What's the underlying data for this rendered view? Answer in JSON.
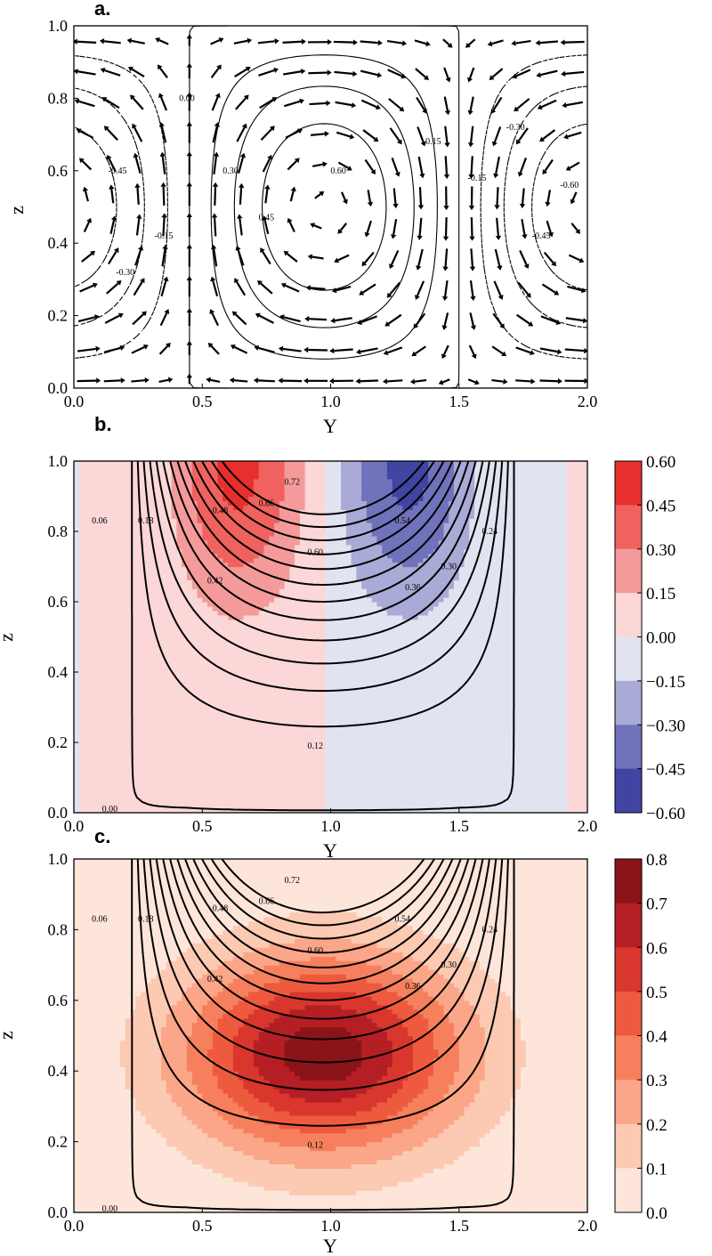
{
  "chart_data": [
    {
      "panel_label": "a.",
      "type": "contour-quiver",
      "xlabel": "Y",
      "ylabel": "z",
      "xlim": [
        0.0,
        2.0
      ],
      "ylim": [
        0.0,
        1.0
      ],
      "xticks": [
        "0.0",
        "0.5",
        "1.0",
        "1.5",
        "2.0"
      ],
      "yticks": [
        "0.0",
        "0.2",
        "0.4",
        "0.6",
        "0.8",
        "1.0"
      ],
      "contour_levels": [
        -0.6,
        -0.45,
        -0.3,
        -0.15,
        0.0,
        0.15,
        0.3,
        0.45,
        0.6
      ],
      "contour_labels": [
        {
          "text": "0.00",
          "y": 0.44,
          "z": 0.8
        },
        {
          "text": "0.30",
          "y": 0.61,
          "z": 0.6
        },
        {
          "text": "0.45",
          "y": 0.75,
          "z": 0.47
        },
        {
          "text": "0.60",
          "y": 1.03,
          "z": 0.6
        },
        {
          "text": "-0.45",
          "y": 0.17,
          "z": 0.6
        },
        {
          "text": "-0.15",
          "y": 0.35,
          "z": 0.42
        },
        {
          "text": "-0.30",
          "y": 0.2,
          "z": 0.32
        },
        {
          "text": "0.15",
          "y": 1.4,
          "z": 0.68
        },
        {
          "text": "-0.30",
          "y": 1.72,
          "z": 0.72
        },
        {
          "text": "-0.15",
          "y": 1.57,
          "z": 0.58
        },
        {
          "text": "-0.60",
          "y": 1.93,
          "z": 0.56
        },
        {
          "text": "-0.45",
          "y": 1.82,
          "z": 0.42
        }
      ]
    },
    {
      "panel_label": "b.",
      "type": "contourf",
      "xlabel": "Y",
      "ylabel": "z",
      "xlim": [
        0.0,
        2.0
      ],
      "ylim": [
        0.0,
        1.0
      ],
      "xticks": [
        "0.0",
        "0.5",
        "1.0",
        "1.5",
        "2.0"
      ],
      "yticks": [
        "0.0",
        "0.2",
        "0.4",
        "0.6",
        "0.8",
        "1.0"
      ],
      "colorbar_ticks": [
        "0.60",
        "0.45",
        "0.30",
        "0.15",
        "0.00",
        "−0.15",
        "−0.30",
        "−0.45",
        "−0.60"
      ],
      "colorbar_colors": [
        "#e82f2d",
        "#f0625f",
        "#f49a9a",
        "#fbd7d7",
        "#e2e3f1",
        "#a9abd6",
        "#7072bb",
        "#4045a2"
      ],
      "contour_levels": [
        0.0,
        0.06,
        0.12,
        0.18,
        0.24,
        0.3,
        0.36,
        0.42,
        0.48,
        0.54,
        0.6,
        0.66,
        0.72
      ],
      "contour_labels": [
        {
          "text": "0.00",
          "y": 0.14,
          "z": 0.01
        },
        {
          "text": "0.06",
          "y": 0.1,
          "z": 0.83
        },
        {
          "text": "0.18",
          "y": 0.28,
          "z": 0.83
        },
        {
          "text": "0.48",
          "y": 0.57,
          "z": 0.86
        },
        {
          "text": "0.66",
          "y": 0.75,
          "z": 0.88
        },
        {
          "text": "0.72",
          "y": 0.85,
          "z": 0.94
        },
        {
          "text": "0.60",
          "y": 0.94,
          "z": 0.74
        },
        {
          "text": "0.42",
          "y": 0.55,
          "z": 0.66
        },
        {
          "text": "0.12",
          "y": 0.94,
          "z": 0.19
        },
        {
          "text": "0.54",
          "y": 1.28,
          "z": 0.83
        },
        {
          "text": "0.36",
          "y": 1.32,
          "z": 0.64
        },
        {
          "text": "0.30",
          "y": 1.46,
          "z": 0.7
        },
        {
          "text": "0.24",
          "y": 1.62,
          "z": 0.8
        }
      ]
    },
    {
      "panel_label": "c.",
      "type": "contourf",
      "xlabel": "Y",
      "ylabel": "z",
      "xlim": [
        0.0,
        2.0
      ],
      "ylim": [
        0.0,
        1.0
      ],
      "xticks": [
        "0.0",
        "0.5",
        "1.0",
        "1.5",
        "2.0"
      ],
      "yticks": [
        "0.0",
        "0.2",
        "0.4",
        "0.6",
        "0.8",
        "1.0"
      ],
      "colorbar_ticks": [
        "0.8",
        "0.7",
        "0.6",
        "0.5",
        "0.4",
        "0.3",
        "0.2",
        "0.1",
        "0.0"
      ],
      "colorbar_colors": [
        "#8b1418",
        "#b41f24",
        "#d9362d",
        "#ee5a3e",
        "#f6805e",
        "#fba688",
        "#fcc9b2",
        "#fde5da"
      ],
      "contour_levels": [
        0.0,
        0.06,
        0.12,
        0.18,
        0.24,
        0.3,
        0.36,
        0.42,
        0.48,
        0.54,
        0.6,
        0.66,
        0.72
      ],
      "contour_labels": [
        {
          "text": "0.00",
          "y": 0.14,
          "z": 0.01
        },
        {
          "text": "0.06",
          "y": 0.1,
          "z": 0.83
        },
        {
          "text": "0.18",
          "y": 0.28,
          "z": 0.83
        },
        {
          "text": "0.48",
          "y": 0.57,
          "z": 0.86
        },
        {
          "text": "0.66",
          "y": 0.75,
          "z": 0.88
        },
        {
          "text": "0.72",
          "y": 0.85,
          "z": 0.94
        },
        {
          "text": "0.60",
          "y": 0.94,
          "z": 0.74
        },
        {
          "text": "0.42",
          "y": 0.55,
          "z": 0.66
        },
        {
          "text": "0.12",
          "y": 0.94,
          "z": 0.19
        },
        {
          "text": "0.54",
          "y": 1.28,
          "z": 0.83
        },
        {
          "text": "0.36",
          "y": 1.32,
          "z": 0.64
        },
        {
          "text": "0.30",
          "y": 1.46,
          "z": 0.7
        },
        {
          "text": "0.24",
          "y": 1.62,
          "z": 0.8
        }
      ]
    }
  ]
}
